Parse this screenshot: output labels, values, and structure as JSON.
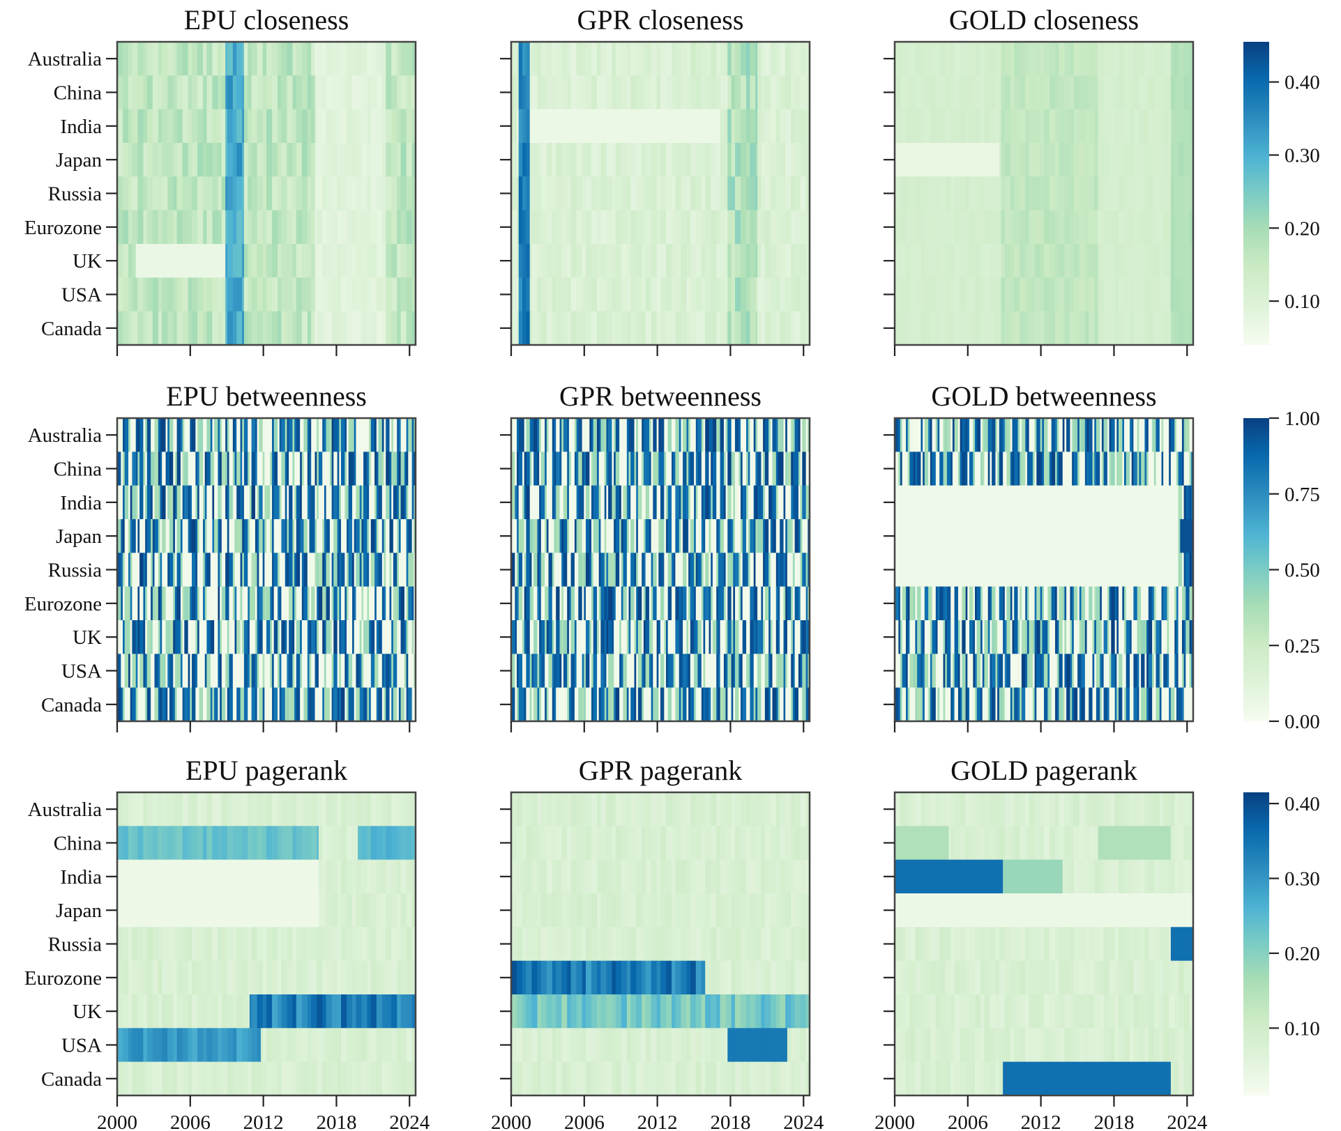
{
  "chart_data": {
    "type": "heatmap",
    "rows": [
      "Australia",
      "China",
      "India",
      "Japan",
      "Russia",
      "Eurozone",
      "UK",
      "USA",
      "Canada"
    ],
    "x_ticks": [
      "2000",
      "2006",
      "2012",
      "2018",
      "2024"
    ],
    "xlim": [
      2000,
      2024.5
    ],
    "colormap": "GnBu",
    "colors": {
      "low": "#f7fcf0",
      "mid_low": "#ccebc5",
      "mid": "#7bccc4",
      "mid_high": "#2b8cbe",
      "high": "#084081"
    },
    "panels": [
      {
        "id": "epu-closeness",
        "title": "EPU closeness",
        "col": 0,
        "row": 0
      },
      {
        "id": "gpr-closeness",
        "title": "GPR closeness",
        "col": 1,
        "row": 0
      },
      {
        "id": "gold-closeness",
        "title": "GOLD closeness",
        "col": 2,
        "row": 0
      },
      {
        "id": "epu-betweenness",
        "title": "EPU betweenness",
        "col": 0,
        "row": 1
      },
      {
        "id": "gpr-betweenness",
        "title": "GPR betweenness",
        "col": 1,
        "row": 1
      },
      {
        "id": "gold-betweenness",
        "title": "GOLD betweenness",
        "col": 2,
        "row": 1
      },
      {
        "id": "epu-pagerank",
        "title": "EPU pagerank",
        "col": 0,
        "row": 2
      },
      {
        "id": "gpr-pagerank",
        "title": "GPR pagerank",
        "col": 1,
        "row": 2
      },
      {
        "id": "gold-pagerank",
        "title": "GOLD pagerank",
        "col": 2,
        "row": 2
      }
    ],
    "colorbars": [
      {
        "metric": "closeness",
        "vmin": 0.04,
        "vmax": 0.455,
        "tick_values": [
          0.1,
          0.2,
          0.3,
          0.4
        ],
        "tick_labels": [
          "0.10",
          "0.20",
          "0.30",
          "0.40"
        ]
      },
      {
        "metric": "betweenness",
        "vmin": 0.0,
        "vmax": 1.0,
        "tick_values": [
          0.0,
          0.25,
          0.5,
          0.75,
          1.0
        ],
        "tick_labels": [
          "0.00",
          "0.25",
          "0.50",
          "0.75",
          "1.00"
        ]
      },
      {
        "metric": "pagerank",
        "vmin": 0.01,
        "vmax": 0.415,
        "tick_values": [
          0.1,
          0.2,
          0.3,
          0.4
        ],
        "tick_labels": [
          "0.10",
          "0.20",
          "0.30",
          "0.40"
        ]
      }
    ]
  }
}
